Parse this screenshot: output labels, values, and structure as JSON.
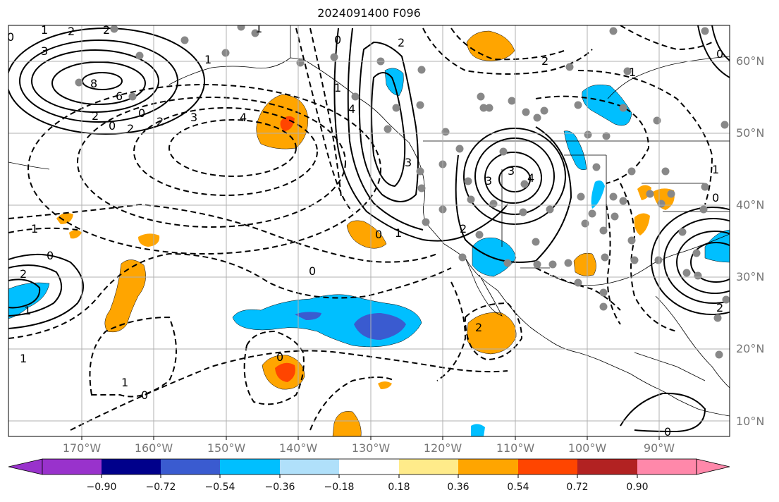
{
  "title": "2024091400 F096",
  "lat_labels": [
    "60°N",
    "50°N",
    "40°N",
    "30°N",
    "20°N",
    "10°N"
  ],
  "lon_labels": [
    "170°W",
    "160°W",
    "150°W",
    "140°W",
    "130°W",
    "120°W",
    "110°W",
    "100°W",
    "90°W"
  ],
  "colorbar": {
    "colors": [
      "#9932cc",
      "#00008b",
      "#3a5bd0",
      "#00bfff",
      "#b0e0fa",
      "#ffffff",
      "#ffeb8a",
      "#ffa500",
      "#ff4500",
      "#b22222",
      "#ff88aa"
    ],
    "tick_labels": [
      "−0.90",
      "−0.72",
      "−0.54",
      "−0.36",
      "−0.18",
      "0.18",
      "0.36",
      "0.54",
      "0.72",
      "0.90"
    ]
  },
  "contour_labels": [
    "0",
    "1",
    "2",
    "2",
    "3",
    "8",
    "6",
    "2",
    "0",
    "0",
    "2",
    "2",
    "3",
    "4",
    "1",
    "0",
    "2",
    "1",
    "4",
    "3",
    "1",
    "3",
    "3",
    "4",
    "2",
    "2",
    "0",
    "1",
    "2",
    "0",
    "1",
    "0",
    "1",
    "2",
    "0",
    "0",
    "1",
    "0",
    "1",
    "1",
    "0",
    "2",
    "1",
    "0"
  ]
}
